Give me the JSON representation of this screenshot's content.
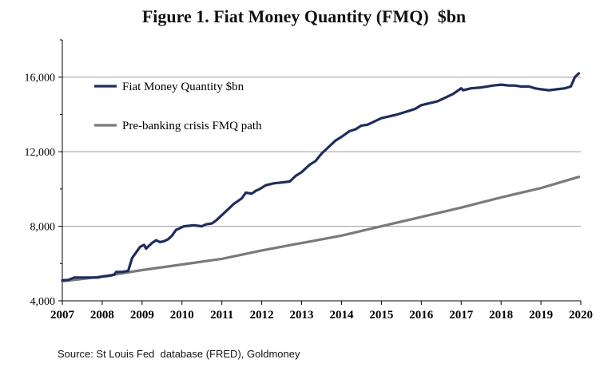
{
  "chart_data": {
    "type": "line",
    "title": "Figure 1. Fiat Money Quantity (FMQ)  $bn",
    "source": "Source: St Louis Fed  database (FRED), Goldmoney",
    "xlabel": "",
    "ylabel": "",
    "xlim": [
      2007,
      2020
    ],
    "ylim": [
      4000,
      18000
    ],
    "x_ticks": [
      "2007",
      "2008",
      "2009",
      "2010",
      "2011",
      "2012",
      "2013",
      "2014",
      "2015",
      "2016",
      "2017",
      "2018",
      "2019",
      "2020"
    ],
    "y_ticks": [
      "4,000",
      "8,000",
      "12,000",
      "16,000"
    ],
    "grid": "horizontal",
    "legend_position": "upper-left",
    "series": [
      {
        "name": "Fiat Money Quantity $bn",
        "color": "#1f2d5c",
        "points": [
          [
            2007.0,
            5100
          ],
          [
            2007.15,
            5120
          ],
          [
            2007.3,
            5250
          ],
          [
            2007.6,
            5250
          ],
          [
            2007.9,
            5250
          ],
          [
            2008.0,
            5300
          ],
          [
            2008.2,
            5350
          ],
          [
            2008.3,
            5400
          ],
          [
            2008.35,
            5550
          ],
          [
            2008.5,
            5550
          ],
          [
            2008.65,
            5600
          ],
          [
            2008.75,
            6300
          ],
          [
            2008.85,
            6600
          ],
          [
            2008.95,
            6900
          ],
          [
            2009.05,
            7000
          ],
          [
            2009.1,
            6800
          ],
          [
            2009.25,
            7100
          ],
          [
            2009.35,
            7250
          ],
          [
            2009.45,
            7150
          ],
          [
            2009.55,
            7200
          ],
          [
            2009.65,
            7300
          ],
          [
            2009.75,
            7500
          ],
          [
            2009.85,
            7800
          ],
          [
            2009.95,
            7900
          ],
          [
            2010.05,
            8000
          ],
          [
            2010.3,
            8050
          ],
          [
            2010.5,
            8000
          ],
          [
            2010.6,
            8100
          ],
          [
            2010.75,
            8150
          ],
          [
            2010.85,
            8300
          ],
          [
            2011.0,
            8600
          ],
          [
            2011.15,
            8900
          ],
          [
            2011.3,
            9200
          ],
          [
            2011.5,
            9500
          ],
          [
            2011.6,
            9800
          ],
          [
            2011.75,
            9750
          ],
          [
            2011.85,
            9900
          ],
          [
            2011.95,
            10000
          ],
          [
            2012.1,
            10200
          ],
          [
            2012.3,
            10300
          ],
          [
            2012.5,
            10350
          ],
          [
            2012.7,
            10400
          ],
          [
            2012.85,
            10700
          ],
          [
            2013.0,
            10900
          ],
          [
            2013.2,
            11300
          ],
          [
            2013.35,
            11500
          ],
          [
            2013.5,
            11900
          ],
          [
            2013.65,
            12200
          ],
          [
            2013.85,
            12600
          ],
          [
            2014.0,
            12800
          ],
          [
            2014.2,
            13100
          ],
          [
            2014.35,
            13200
          ],
          [
            2014.5,
            13400
          ],
          [
            2014.65,
            13450
          ],
          [
            2014.8,
            13600
          ],
          [
            2015.0,
            13800
          ],
          [
            2015.2,
            13900
          ],
          [
            2015.4,
            14000
          ],
          [
            2015.55,
            14100
          ],
          [
            2015.7,
            14200
          ],
          [
            2015.85,
            14300
          ],
          [
            2016.0,
            14500
          ],
          [
            2016.2,
            14600
          ],
          [
            2016.4,
            14700
          ],
          [
            2016.6,
            14900
          ],
          [
            2016.8,
            15100
          ],
          [
            2017.0,
            15400
          ],
          [
            2017.05,
            15300
          ],
          [
            2017.25,
            15400
          ],
          [
            2017.5,
            15450
          ],
          [
            2017.65,
            15500
          ],
          [
            2017.8,
            15550
          ],
          [
            2018.0,
            15600
          ],
          [
            2018.2,
            15550
          ],
          [
            2018.35,
            15550
          ],
          [
            2018.5,
            15500
          ],
          [
            2018.7,
            15500
          ],
          [
            2018.85,
            15400
          ],
          [
            2019.0,
            15350
          ],
          [
            2019.2,
            15300
          ],
          [
            2019.4,
            15350
          ],
          [
            2019.6,
            15400
          ],
          [
            2019.75,
            15500
          ],
          [
            2019.85,
            16000
          ],
          [
            2019.95,
            16200
          ]
        ]
      },
      {
        "name": "Pre-banking crisis FMQ path",
        "color": "#7a7a7a",
        "points": [
          [
            2007.0,
            5050
          ],
          [
            2008.0,
            5300
          ],
          [
            2009.0,
            5650
          ],
          [
            2010.0,
            5950
          ],
          [
            2011.0,
            6250
          ],
          [
            2012.0,
            6700
          ],
          [
            2013.0,
            7100
          ],
          [
            2014.0,
            7500
          ],
          [
            2015.0,
            8000
          ],
          [
            2016.0,
            8500
          ],
          [
            2017.0,
            9000
          ],
          [
            2018.0,
            9550
          ],
          [
            2019.0,
            10050
          ],
          [
            2019.95,
            10650
          ]
        ]
      }
    ]
  }
}
